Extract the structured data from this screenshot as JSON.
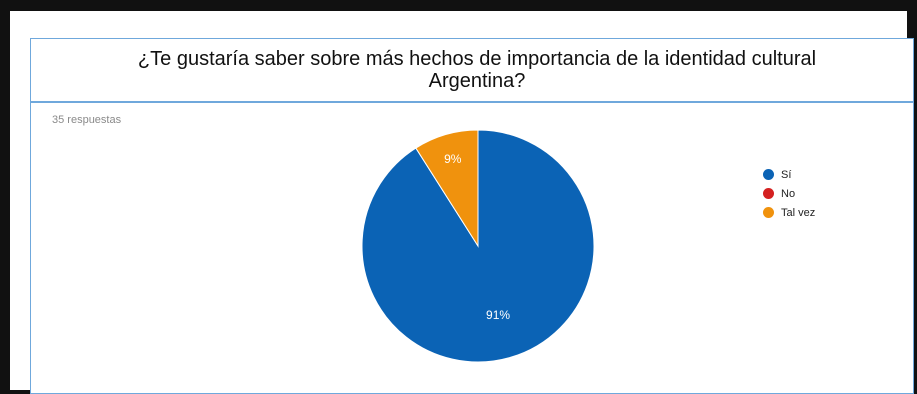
{
  "chart_data": {
    "type": "pie",
    "title": "¿Te gustaría saber sobre más hechos de importancia de la identidad cultural Argentina?",
    "subtitle": "35 respuestas",
    "legend_position": "right",
    "slices": [
      {
        "label": "Sí",
        "value": 91,
        "display": "91%",
        "color": "#0b63b5"
      },
      {
        "label": "No",
        "value": 0,
        "display": "",
        "color": "#d42020"
      },
      {
        "label": "Tal vez",
        "value": 9,
        "display": "9%",
        "color": "#f0920d"
      }
    ]
  }
}
